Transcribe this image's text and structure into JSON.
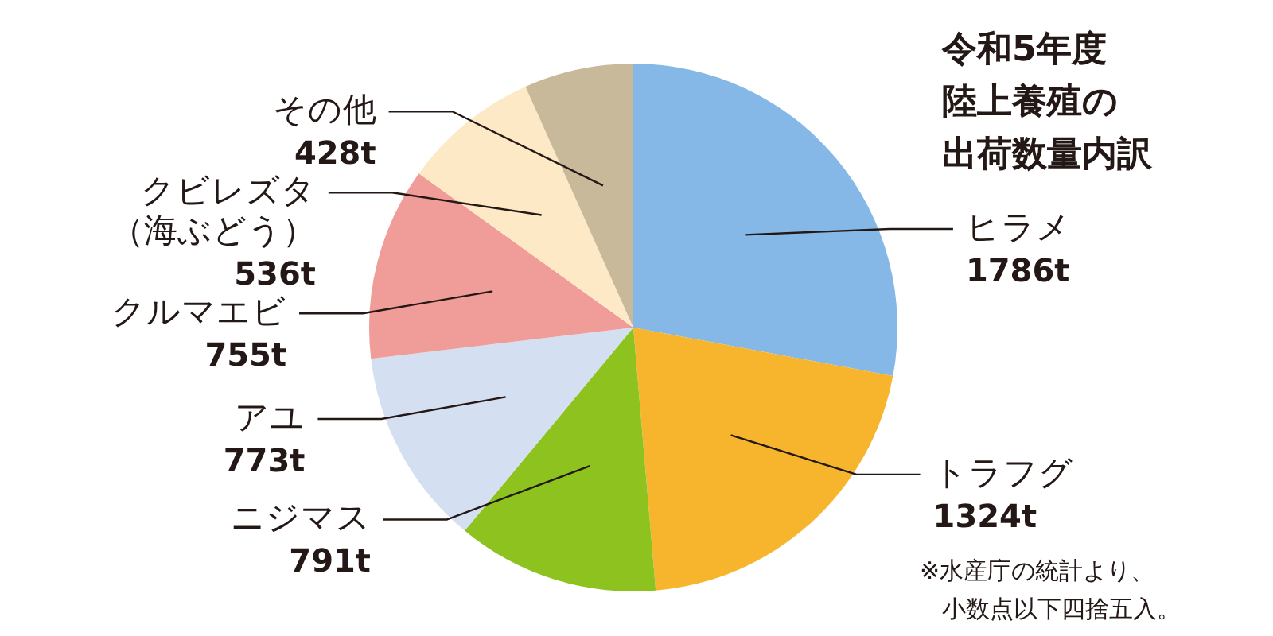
{
  "chart_data": {
    "type": "pie",
    "title": "令和5年度陸上養殖の出荷数量内訳",
    "categories": [
      "ヒラメ",
      "トラフグ",
      "ニジマス",
      "アユ",
      "クルマエビ",
      "クビレズタ（海ぶどう）",
      "その他"
    ],
    "values": [
      1786,
      1324,
      791,
      773,
      755,
      536,
      428
    ],
    "colors": [
      "#85b8e6",
      "#f7b52e",
      "#8dc21f",
      "#d4dff2",
      "#f09c98",
      "#fde9c6",
      "#c9b99b"
    ],
    "value_labels": [
      "1786t",
      "1324t",
      "791t",
      "773t",
      "755t",
      "536t",
      "428t"
    ],
    "annotations": [
      "※水産庁の統計より、小数点以下四捨五入。"
    ]
  }
}
